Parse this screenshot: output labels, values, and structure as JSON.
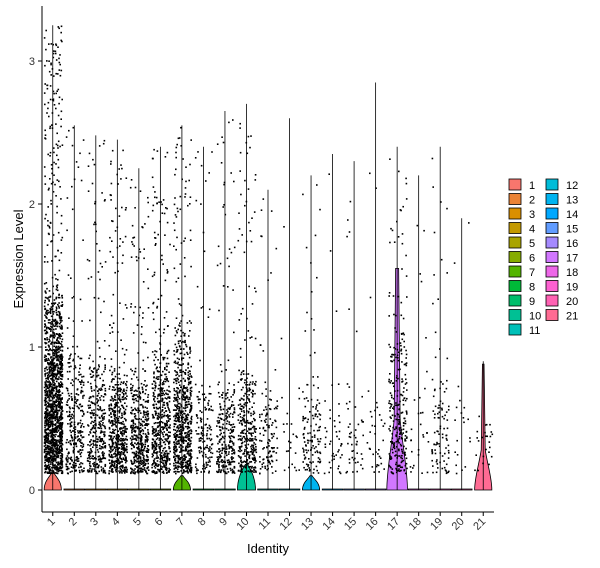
{
  "chart_data": {
    "type": "violin",
    "xlabel": "Identity",
    "ylabel": "Expression Level",
    "ylim": [
      -0.15,
      3.4
    ],
    "y_ticks": [
      0,
      1,
      2,
      3
    ],
    "categories": [
      "1",
      "2",
      "3",
      "4",
      "5",
      "6",
      "7",
      "8",
      "9",
      "10",
      "11",
      "12",
      "13",
      "14",
      "15",
      "16",
      "17",
      "18",
      "19",
      "20",
      "21"
    ],
    "colors": [
      "#F8766D",
      "#EB8335",
      "#DA8F00",
      "#C49A00",
      "#A9A400",
      "#86AC00",
      "#53B400",
      "#00BA38",
      "#00BE6B",
      "#00C094",
      "#00C0B8",
      "#00BCD8",
      "#00B4F0",
      "#00A8FF",
      "#619CFF",
      "#A58AFF",
      "#D177FF",
      "#EE67E8",
      "#FD61D1",
      "#FF62B3",
      "#FF6B93"
    ],
    "series": [
      {
        "name": "1",
        "max": 3.25,
        "violin_peak": 0.12,
        "violin_halfwidth": 0.4,
        "dots": 1600,
        "dense_max": 1.5
      },
      {
        "name": "2",
        "max": 2.55,
        "violin_peak": 0.01,
        "violin_halfwidth": 0.48,
        "dots": 300,
        "dense_max": 1.1
      },
      {
        "name": "3",
        "max": 2.48,
        "violin_peak": 0.01,
        "violin_halfwidth": 0.48,
        "dots": 350,
        "dense_max": 1.0
      },
      {
        "name": "4",
        "max": 2.45,
        "violin_peak": 0.01,
        "violin_halfwidth": 0.48,
        "dots": 550,
        "dense_max": 0.9
      },
      {
        "name": "5",
        "max": 2.25,
        "violin_peak": 0.01,
        "violin_halfwidth": 0.48,
        "dots": 450,
        "dense_max": 0.9
      },
      {
        "name": "6",
        "max": 2.4,
        "violin_peak": 0.01,
        "violin_halfwidth": 0.48,
        "dots": 550,
        "dense_max": 1.0
      },
      {
        "name": "7",
        "max": 2.55,
        "violin_peak": 0.1,
        "violin_halfwidth": 0.4,
        "dots": 700,
        "dense_max": 1.2
      },
      {
        "name": "8",
        "max": 2.4,
        "violin_peak": 0.01,
        "violin_halfwidth": 0.48,
        "dots": 150,
        "dense_max": 0.8
      },
      {
        "name": "9",
        "max": 2.65,
        "violin_peak": 0.01,
        "violin_halfwidth": 0.48,
        "dots": 280,
        "dense_max": 0.8
      },
      {
        "name": "10",
        "max": 2.7,
        "violin_peak": 0.18,
        "violin_halfwidth": 0.42,
        "dots": 350,
        "dense_max": 0.9
      },
      {
        "name": "11",
        "max": 2.1,
        "violin_peak": 0.01,
        "violin_halfwidth": 0.48,
        "dots": 120,
        "dense_max": 0.8
      },
      {
        "name": "12",
        "max": 2.6,
        "violin_peak": 0.01,
        "violin_halfwidth": 0.48,
        "dots": 25,
        "dense_max": 0.8
      },
      {
        "name": "13",
        "max": 2.2,
        "violin_peak": 0.1,
        "violin_halfwidth": 0.4,
        "dots": 130,
        "dense_max": 0.8
      },
      {
        "name": "14",
        "max": 2.35,
        "violin_peak": 0.01,
        "violin_halfwidth": 0.48,
        "dots": 45,
        "dense_max": 0.8
      },
      {
        "name": "15",
        "max": 2.3,
        "violin_peak": 0.01,
        "violin_halfwidth": 0.48,
        "dots": 50,
        "dense_max": 0.8
      },
      {
        "name": "16",
        "max": 2.85,
        "violin_peak": 0.01,
        "violin_halfwidth": 0.48,
        "dots": 35,
        "dense_max": 0.8
      },
      {
        "name": "17",
        "max": 2.4,
        "violin_peak": 0.22,
        "violin_halfwidth": 0.48,
        "dots": 280,
        "dense_max": 1.3
      },
      {
        "name": "18",
        "max": 2.2,
        "violin_peak": 0.01,
        "violin_halfwidth": 0.48,
        "dots": 30,
        "dense_max": 0.8
      },
      {
        "name": "19",
        "max": 2.4,
        "violin_peak": 0.01,
        "violin_halfwidth": 0.48,
        "dots": 100,
        "dense_max": 0.8
      },
      {
        "name": "20",
        "max": 1.9,
        "violin_peak": 0.01,
        "violin_halfwidth": 0.48,
        "dots": 20,
        "dense_max": 0.8
      },
      {
        "name": "21",
        "max": 0.9,
        "violin_peak": 0.12,
        "violin_halfwidth": 0.4,
        "dots": 25,
        "dense_max": 0.6
      }
    ],
    "legend": {
      "placement": "right",
      "columns": 2,
      "entries": [
        "1",
        "2",
        "3",
        "4",
        "5",
        "6",
        "7",
        "8",
        "9",
        "10",
        "11",
        "12",
        "13",
        "14",
        "15",
        "16",
        "17",
        "18",
        "19",
        "20",
        "21"
      ]
    },
    "grid": false
  }
}
